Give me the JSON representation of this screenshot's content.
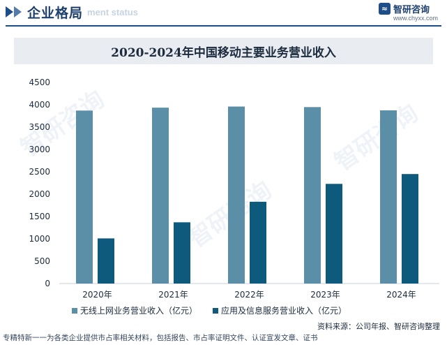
{
  "header": {
    "section_title": "企业格局",
    "section_subtitle": "ment status",
    "brand_name": "智研咨询",
    "brand_url": "www.chyxx.com"
  },
  "chart_title": "2020-2024年中国移动主要业务营业收入",
  "chart_data": {
    "type": "bar",
    "title": "2020-2024年中国移动主要业务营业收入",
    "categories": [
      "2020年",
      "2021年",
      "2022年",
      "2023年",
      "2024年"
    ],
    "series": [
      {
        "name": "无线上网业务营业收入（亿元）",
        "values": [
          3870,
          3935,
          3960,
          3948,
          3875
        ],
        "color": "#5b8fa8"
      },
      {
        "name": "应用及信息服务营业收入（亿元）",
        "values": [
          1010,
          1370,
          1830,
          2230,
          2450
        ],
        "color": "#0d5a7d"
      }
    ],
    "ylim": [
      0,
      4500
    ],
    "yticks": [
      0,
      500,
      1000,
      1500,
      2000,
      2500,
      3000,
      3500,
      4000,
      4500
    ],
    "grid": false,
    "legend": "bottom"
  },
  "source": "资料来源：公司年报、智研咨询整理",
  "footer": "专精特新一一为各类企业提供市占率相关材料，包括报告、市占率证明文件、认证宣发文章、证书"
}
